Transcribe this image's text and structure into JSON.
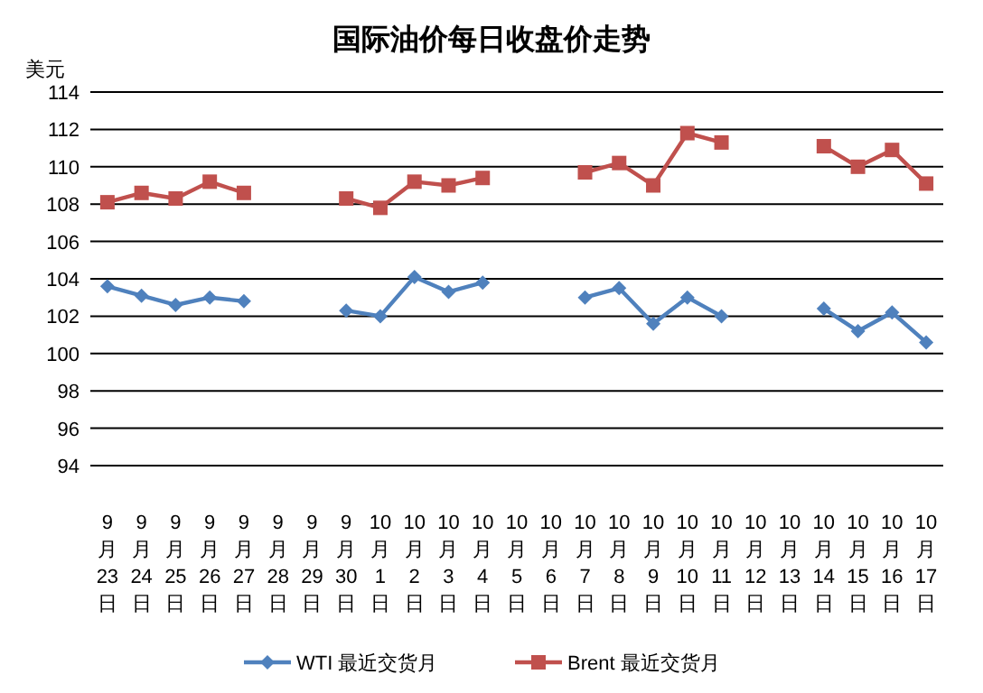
{
  "chart_data": {
    "type": "line",
    "title": "国际油价每日收盘价走势",
    "ylabel": "美元",
    "categories": [
      "9月23日",
      "9月24日",
      "9月25日",
      "9月26日",
      "9月27日",
      "9月28日",
      "9月29日",
      "9月30日",
      "10月1日",
      "10月2日",
      "10月3日",
      "10月4日",
      "10月5日",
      "10月6日",
      "10月7日",
      "10月8日",
      "10月9日",
      "10月10日",
      "10月11日",
      "10月12日",
      "10月13日",
      "10月14日",
      "10月15日",
      "10月16日",
      "10月17日"
    ],
    "series": [
      {
        "name": "WTI 最近交货月",
        "color": "#4f81bd",
        "marker": "diamond",
        "values": [
          103.6,
          103.1,
          102.6,
          103.0,
          102.8,
          null,
          null,
          102.3,
          102.0,
          104.1,
          103.3,
          103.8,
          null,
          null,
          103.0,
          103.5,
          101.6,
          103.0,
          102.0,
          null,
          null,
          102.4,
          101.2,
          102.2,
          100.6
        ]
      },
      {
        "name": "Brent 最近交货月",
        "color": "#c0504d",
        "marker": "square",
        "values": [
          108.1,
          108.6,
          108.3,
          109.2,
          108.6,
          null,
          null,
          108.3,
          107.8,
          109.2,
          109.0,
          109.4,
          null,
          null,
          109.7,
          110.2,
          109.0,
          111.8,
          111.3,
          null,
          null,
          111.1,
          110.0,
          110.9,
          109.1
        ]
      }
    ],
    "ylim": [
      94,
      114
    ],
    "yticks": [
      94,
      96,
      98,
      100,
      102,
      104,
      106,
      108,
      110,
      112,
      114
    ],
    "grid": "y",
    "legend": "bottom"
  }
}
